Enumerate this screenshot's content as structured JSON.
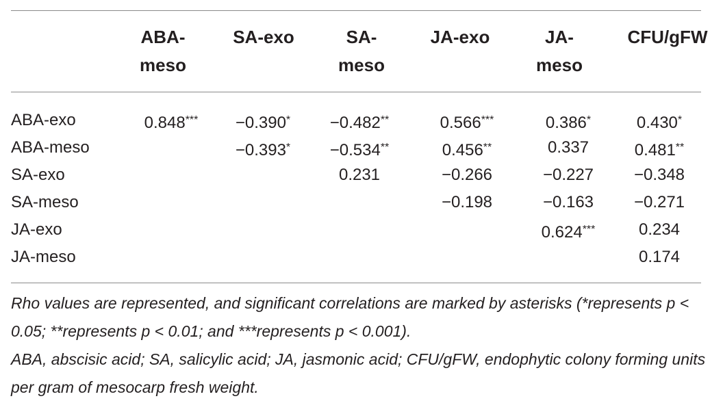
{
  "columns": [
    "ABA-meso",
    "SA-exo",
    "SA-meso",
    "JA-exo",
    "JA-meso",
    "CFU/gFW"
  ],
  "rows": [
    {
      "label": "ABA-exo",
      "cells": [
        "0.848***",
        "−0.390*",
        "−0.482**",
        "0.566***",
        "0.386*",
        "0.430*"
      ]
    },
    {
      "label": "ABA-meso",
      "cells": [
        "",
        "−0.393*",
        "−0.534**",
        "0.456**",
        "0.337",
        "0.481**"
      ]
    },
    {
      "label": "SA-exo",
      "cells": [
        "",
        "",
        "0.231",
        "−0.266",
        "−0.227",
        "−0.348"
      ]
    },
    {
      "label": "SA-meso",
      "cells": [
        "",
        "",
        "",
        "−0.198",
        "−0.163",
        "−0.271"
      ]
    },
    {
      "label": "JA-exo",
      "cells": [
        "",
        "",
        "",
        "",
        "0.624***",
        "0.234"
      ]
    },
    {
      "label": "JA-meso",
      "cells": [
        "",
        "",
        "",
        "",
        "",
        "0.174"
      ]
    }
  ],
  "footnotes": [
    "Rho values are represented, and significant correlations are marked by asterisks (*represents p < 0.05; **represents p < 0.01; and ***represents p < 0.001).",
    "ABA, abscisic acid; SA, salicylic acid; JA, jasmonic acid; CFU/gFW, endophytic colony forming units per gram of mesocarp fresh weight."
  ]
}
